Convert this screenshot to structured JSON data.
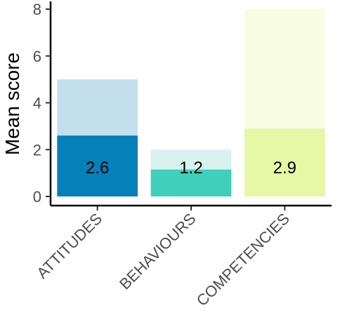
{
  "chart_data": {
    "type": "bar",
    "title": "",
    "xlabel": "",
    "ylabel": "Mean score",
    "ylim": [
      0,
      8.2
    ],
    "yticks": [
      0,
      2,
      4,
      6,
      8
    ],
    "grid": false,
    "categories": [
      "ATTITUDES",
      "BEHAVIOURS",
      "COMPETENCIES"
    ],
    "series": [
      {
        "role": "maximum",
        "values": [
          5,
          2,
          8
        ]
      },
      {
        "role": "mean",
        "values": [
          2.6,
          1.15,
          2.9
        ]
      }
    ],
    "value_labels": [
      "2.6",
      "1.2",
      "2.9"
    ],
    "colors": {
      "mean": [
        "#0580b9",
        "#40cfba",
        "#e6f7a6"
      ],
      "maximum": [
        "#c3dfec",
        "#d7f2ef",
        "#f8fde4"
      ]
    }
  }
}
